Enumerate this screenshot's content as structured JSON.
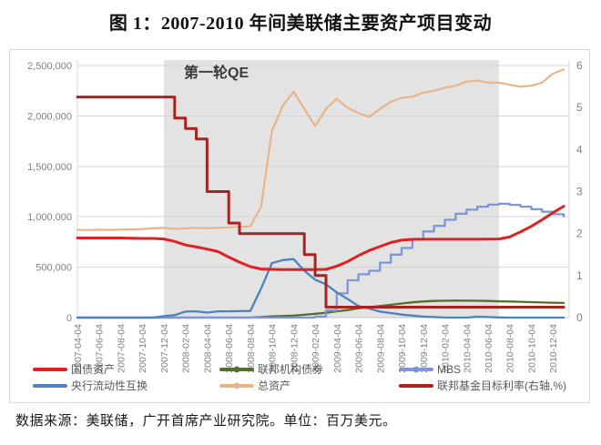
{
  "title": "图 1：2007-2010 年间美联储主要资产项目变动",
  "footer": "数据来源：美联储，广开首席产业研究院。单位：百万美元。",
  "chart_data": {
    "type": "line",
    "unit": "百万美元",
    "qe_band": {
      "label": "第一轮QE",
      "from_month_index": 8,
      "to_month_index": 39
    },
    "colors": {
      "treasury": "#dd2125",
      "agency": "#50702f",
      "mbs": "#7e97d3",
      "swap": "#4f81bd",
      "total": "#e8b48c",
      "fedfunds": "#a8221f",
      "shade": "#e3e3e3",
      "grid": "#d5d5d5",
      "axis_text": "#808080",
      "legend_text": "#595959",
      "border": "#d9d9d9"
    },
    "y_left": {
      "min": 0,
      "max": 2500000,
      "tick_labels": [
        "0",
        "500,000",
        "1,000,000",
        "1,500,000",
        "2,000,000",
        "2,500,000"
      ]
    },
    "y_right": {
      "min": 0,
      "max": 6,
      "tick_labels": [
        "0",
        "1",
        "2",
        "3",
        "4",
        "5",
        "6"
      ]
    },
    "x_tick_labels": [
      "2007-04-04",
      "2007-06-04",
      "2007-08-04",
      "2007-10-04",
      "2007-12-04",
      "2008-02-04",
      "2008-04-04",
      "2008-06-04",
      "2008-08-04",
      "2008-10-04",
      "2008-12-04",
      "2009-02-04",
      "2009-04-04",
      "2009-06-04",
      "2009-08-04",
      "2009-10-04",
      "2009-12-04",
      "2010-02-04",
      "2010-04-04",
      "2010-06-04",
      "2010-08-04",
      "2010-10-04",
      "2010-12-04"
    ],
    "x_months": [
      "2007-04",
      "2007-05",
      "2007-06",
      "2007-07",
      "2007-08",
      "2007-09",
      "2007-10",
      "2007-11",
      "2007-12",
      "2008-01",
      "2008-02",
      "2008-03",
      "2008-04",
      "2008-05",
      "2008-06",
      "2008-07",
      "2008-08",
      "2008-09",
      "2008-10",
      "2008-11",
      "2008-12",
      "2009-01",
      "2009-02",
      "2009-03",
      "2009-04",
      "2009-05",
      "2009-06",
      "2009-07",
      "2009-08",
      "2009-09",
      "2009-10",
      "2009-11",
      "2009-12",
      "2010-01",
      "2010-02",
      "2010-03",
      "2010-04",
      "2010-05",
      "2010-06",
      "2010-07",
      "2010-08",
      "2010-09",
      "2010-10",
      "2010-11",
      "2010-12",
      "2011-01"
    ],
    "series": [
      {
        "name": "国债资产",
        "color_key": "treasury",
        "axis": "left",
        "step": false,
        "marker": false,
        "values": [
          790000,
          790000,
          790000,
          790000,
          790000,
          787000,
          785000,
          785000,
          780000,
          755000,
          720000,
          700000,
          680000,
          655000,
          600000,
          550000,
          505000,
          482000,
          478000,
          476000,
          476000,
          476000,
          476000,
          478000,
          510000,
          555000,
          615000,
          665000,
          705000,
          745000,
          768000,
          776000,
          777000,
          777000,
          777000,
          777000,
          777000,
          777000,
          778000,
          780000,
          800000,
          850000,
          905000,
          970000,
          1040000,
          1105000
        ]
      },
      {
        "name": "联邦机构债券",
        "color_key": "agency",
        "axis": "left",
        "step": false,
        "marker": true,
        "values": [
          0,
          0,
          0,
          0,
          0,
          0,
          0,
          0,
          0,
          0,
          0,
          0,
          0,
          0,
          0,
          0,
          0,
          5000,
          13000,
          15000,
          20000,
          28000,
          38000,
          48000,
          62000,
          75000,
          92000,
          104000,
          115000,
          127000,
          140000,
          152000,
          160000,
          165000,
          167000,
          169000,
          168000,
          167000,
          165000,
          162000,
          160000,
          157000,
          153000,
          150000,
          147000,
          145000
        ]
      },
      {
        "name": "MBS",
        "color_key": "mbs",
        "axis": "left",
        "step": true,
        "marker": true,
        "values": [
          0,
          0,
          0,
          0,
          0,
          0,
          0,
          0,
          0,
          0,
          0,
          0,
          0,
          0,
          0,
          0,
          0,
          0,
          0,
          0,
          0,
          0,
          10000,
          70000,
          240000,
          370000,
          430000,
          465000,
          545000,
          625000,
          690000,
          775000,
          855000,
          910000,
          970000,
          1030000,
          1070000,
          1100000,
          1120000,
          1129000,
          1118000,
          1100000,
          1075000,
          1050000,
          1025000,
          1004000
        ]
      },
      {
        "name": "央行流动性互换",
        "color_key": "swap",
        "axis": "left",
        "step": false,
        "marker": false,
        "values": [
          0,
          0,
          0,
          0,
          0,
          0,
          0,
          0,
          14000,
          24000,
          60000,
          62000,
          50000,
          62000,
          62000,
          64000,
          66000,
          290000,
          540000,
          570000,
          580000,
          465000,
          375000,
          330000,
          250000,
          185000,
          115000,
          90000,
          60000,
          45000,
          30000,
          20000,
          10000,
          5000,
          1000,
          0,
          0,
          9000,
          5000,
          2000,
          0,
          0,
          0,
          0,
          0,
          0
        ]
      },
      {
        "name": "总资产",
        "color_key": "total",
        "axis": "left",
        "step": false,
        "marker": true,
        "values": [
          870000,
          868000,
          872000,
          870000,
          873000,
          875000,
          878000,
          885000,
          890000,
          880000,
          885000,
          890000,
          885000,
          890000,
          895000,
          900000,
          905000,
          1100000,
          1850000,
          2100000,
          2240000,
          2070000,
          1900000,
          2070000,
          2170000,
          2080000,
          2030000,
          1990000,
          2070000,
          2140000,
          2180000,
          2190000,
          2230000,
          2250000,
          2280000,
          2300000,
          2340000,
          2350000,
          2330000,
          2330000,
          2310000,
          2290000,
          2300000,
          2330000,
          2420000,
          2460000
        ]
      },
      {
        "name": "联邦基金目标利率(右轴,%)",
        "color_key": "fedfunds",
        "axis": "right",
        "step": true,
        "marker": false,
        "values": [
          5.25,
          5.25,
          5.25,
          5.25,
          5.25,
          5.25,
          5.25,
          5.25,
          5.25,
          4.75,
          4.5,
          4.25,
          3.0,
          3.0,
          2.25,
          2.0,
          2.0,
          2.0,
          2.0,
          2.0,
          2.0,
          1.5,
          1.0,
          0.25,
          0.25,
          0.25,
          0.25,
          0.25,
          0.25,
          0.25,
          0.25,
          0.25,
          0.25,
          0.25,
          0.25,
          0.25,
          0.25,
          0.25,
          0.25,
          0.25,
          0.25,
          0.25,
          0.25,
          0.25,
          0.25,
          0.25
        ]
      }
    ],
    "legend_order": [
      0,
      1,
      2,
      3,
      4,
      5
    ],
    "legend_position": "bottom"
  }
}
